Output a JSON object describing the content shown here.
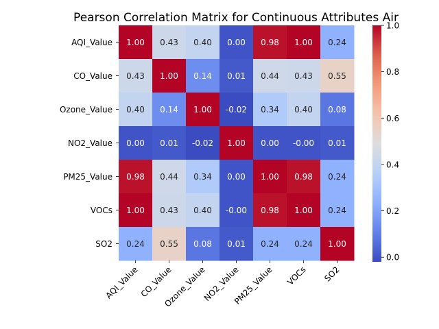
{
  "chart_data": {
    "type": "heatmap",
    "title": "Pearson Correlation Matrix for Continuous Attributes Air",
    "xlabel": "",
    "ylabel": "",
    "labels": [
      "AQI_Value",
      "CO_Value",
      "Ozone_Value",
      "NO2_Value",
      "PM25_Value",
      "VOCs",
      "SO2"
    ],
    "cell_labels": [
      [
        "1.00",
        "0.43",
        "0.40",
        "0.00",
        "0.98",
        "1.00",
        "0.24"
      ],
      [
        "0.43",
        "1.00",
        "0.14",
        "0.01",
        "0.44",
        "0.43",
        "0.55"
      ],
      [
        "0.40",
        "0.14",
        "1.00",
        "-0.02",
        "0.34",
        "0.40",
        "0.08"
      ],
      [
        "0.00",
        "0.01",
        "-0.02",
        "1.00",
        "0.00",
        "-0.00",
        "0.01"
      ],
      [
        "0.98",
        "0.44",
        "0.34",
        "0.00",
        "1.00",
        "0.98",
        "0.24"
      ],
      [
        "1.00",
        "0.43",
        "0.40",
        "-0.00",
        "0.98",
        "1.00",
        "0.24"
      ],
      [
        "0.24",
        "0.55",
        "0.08",
        "0.01",
        "0.24",
        "0.24",
        "1.00"
      ]
    ],
    "colormap": "coolwarm",
    "colorbar": {
      "range": [
        -0.02,
        1.0
      ],
      "ticks": [
        "0.0",
        "0.2",
        "0.4",
        "0.6",
        "0.8",
        "1.0"
      ]
    }
  }
}
